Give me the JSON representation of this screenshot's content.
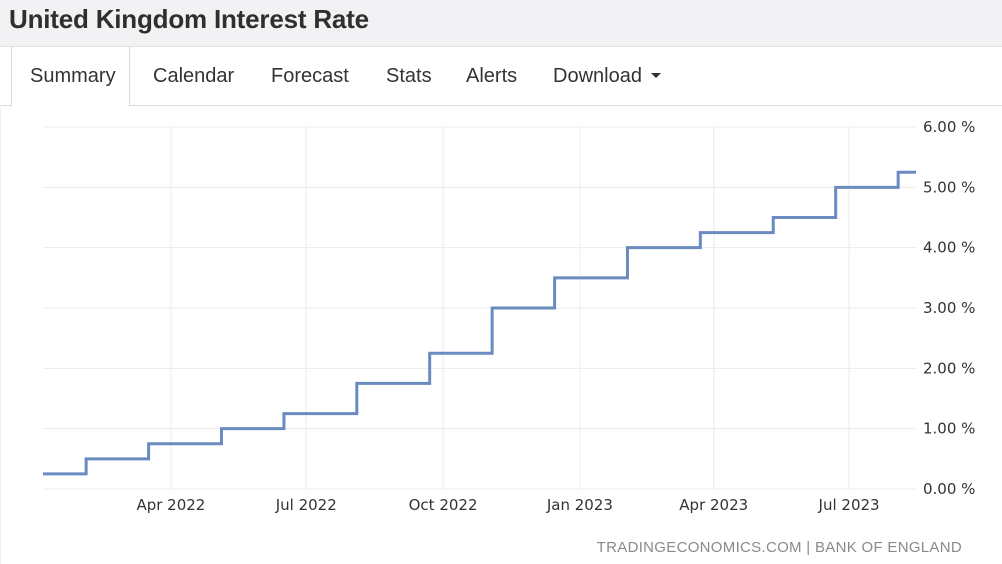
{
  "page": {
    "title": "United Kingdom Interest Rate"
  },
  "tabs": [
    {
      "label": "Summary",
      "active": true
    },
    {
      "label": "Calendar",
      "active": false
    },
    {
      "label": "Forecast",
      "active": false
    },
    {
      "label": "Stats",
      "active": false
    },
    {
      "label": "Alerts",
      "active": false
    },
    {
      "label": "Download",
      "active": false,
      "has_dropdown": true
    }
  ],
  "source": {
    "text": "TRADINGECONOMICS.COM | BANK OF ENGLAND"
  },
  "colors": {
    "line": "#6a8bbf",
    "grid": "#ececec",
    "title_bar_bg": "#f2f2f4",
    "tick_text": "#333333",
    "source_text": "#8a8a8a"
  },
  "chart_data": {
    "type": "line",
    "step": true,
    "title": "",
    "xlabel": "",
    "ylabel": "",
    "y_axis_position": "right",
    "grid": true,
    "legend": "none",
    "xlim": [
      "2022-01-05",
      "2023-08-15"
    ],
    "ylim": [
      0,
      6
    ],
    "y_ticks": [
      0,
      1,
      2,
      3,
      4,
      5,
      6
    ],
    "y_tick_labels": [
      "0.00 %",
      "1.00 %",
      "2.00 %",
      "3.00 %",
      "4.00 %",
      "5.00 %",
      "6.00 %"
    ],
    "x_ticks": [
      {
        "date": "2022-04-01",
        "label": "Apr 2022"
      },
      {
        "date": "2022-07-01",
        "label": "Jul 2022"
      },
      {
        "date": "2022-10-01",
        "label": "Oct 2022"
      },
      {
        "date": "2023-01-01",
        "label": "Jan 2023"
      },
      {
        "date": "2023-04-01",
        "label": "Apr 2023"
      },
      {
        "date": "2023-07-01",
        "label": "Jul 2023"
      }
    ],
    "series": [
      {
        "points": [
          {
            "x": "2022-01-05",
            "y": 0.25
          },
          {
            "x": "2022-02-03",
            "y": 0.5
          },
          {
            "x": "2022-03-17",
            "y": 0.75
          },
          {
            "x": "2022-05-05",
            "y": 1.0
          },
          {
            "x": "2022-06-16",
            "y": 1.25
          },
          {
            "x": "2022-08-04",
            "y": 1.75
          },
          {
            "x": "2022-09-22",
            "y": 2.25
          },
          {
            "x": "2022-11-03",
            "y": 3.0
          },
          {
            "x": "2022-12-15",
            "y": 3.5
          },
          {
            "x": "2023-02-02",
            "y": 4.0
          },
          {
            "x": "2023-03-23",
            "y": 4.25
          },
          {
            "x": "2023-05-11",
            "y": 4.5
          },
          {
            "x": "2023-06-22",
            "y": 5.0
          },
          {
            "x": "2023-08-03",
            "y": 5.25
          }
        ]
      }
    ]
  }
}
